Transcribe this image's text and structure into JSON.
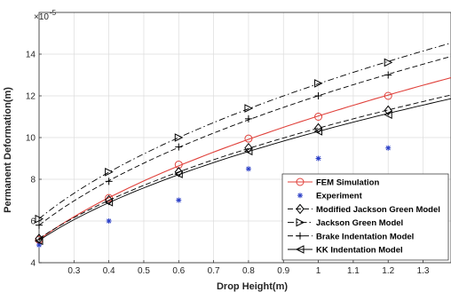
{
  "chart_data": {
    "type": "line",
    "title": "",
    "xlabel": "Drop Height(m)",
    "ylabel": "Permanent Deformation(m)",
    "y_exponent_label": "×10",
    "y_exponent_power": "-5",
    "xlim": [
      0.2,
      1.38
    ],
    "ylim": [
      4,
      16
    ],
    "xticks": [
      0.3,
      0.4,
      0.5,
      0.6,
      0.7,
      0.8,
      0.9,
      1,
      1.1,
      1.2,
      1.3
    ],
    "xtick_labels": [
      "0.3",
      "0.4",
      "0.5",
      "0.6",
      "0.7",
      "0.8",
      "0.9",
      "1",
      "1.1",
      "1.2",
      "1.3"
    ],
    "yticks": [
      4,
      6,
      8,
      10,
      12,
      14
    ],
    "ytick_labels": [
      "4",
      "6",
      "8",
      "10",
      "12",
      "14"
    ],
    "grid": true,
    "legend_position": "bottom-right",
    "series": [
      {
        "name": "FEM Simulation",
        "color": "#e0413b",
        "dash": "solid",
        "marker": "circle",
        "x": [
          0.2,
          0.4,
          0.6,
          0.8,
          1.0,
          1.2
        ],
        "y": [
          5.1,
          7.1,
          8.7,
          9.95,
          11.0,
          12.0
        ]
      },
      {
        "name": "Experiment",
        "color": "#2b3fc7",
        "dash": "none",
        "marker": "asterisk",
        "x": [
          0.2,
          0.4,
          0.6,
          0.8,
          1.0,
          1.2
        ],
        "y": [
          4.85,
          6.0,
          7.0,
          8.5,
          9.0,
          9.5
        ]
      },
      {
        "name": "Modified Jackson Green Model",
        "color": "#000000",
        "dash": "dashed",
        "marker": "diamond",
        "x": [
          0.2,
          0.4,
          0.6,
          0.8,
          1.0,
          1.2
        ],
        "y": [
          5.15,
          7.0,
          8.35,
          9.5,
          10.45,
          11.3
        ]
      },
      {
        "name": "Jackson Green Model",
        "color": "#000000",
        "dash": "dashdot",
        "marker": "triangle-right",
        "x": [
          0.2,
          0.4,
          0.6,
          0.8,
          1.0,
          1.2
        ],
        "y": [
          6.1,
          8.35,
          10.0,
          11.4,
          12.6,
          13.6
        ]
      },
      {
        "name": "Brake Indentation Model",
        "color": "#000000",
        "dash": "dashed",
        "marker": "plus",
        "x": [
          0.2,
          0.4,
          0.6,
          0.8,
          1.0,
          1.2
        ],
        "y": [
          5.8,
          7.9,
          9.55,
          10.9,
          12.0,
          13.0
        ]
      },
      {
        "name": "KK Indentation Model",
        "color": "#000000",
        "dash": "solid",
        "marker": "triangle-left",
        "x": [
          0.2,
          0.4,
          0.6,
          0.8,
          1.0,
          1.2
        ],
        "y": [
          5.05,
          6.9,
          8.25,
          9.35,
          10.3,
          11.1
        ]
      }
    ]
  }
}
